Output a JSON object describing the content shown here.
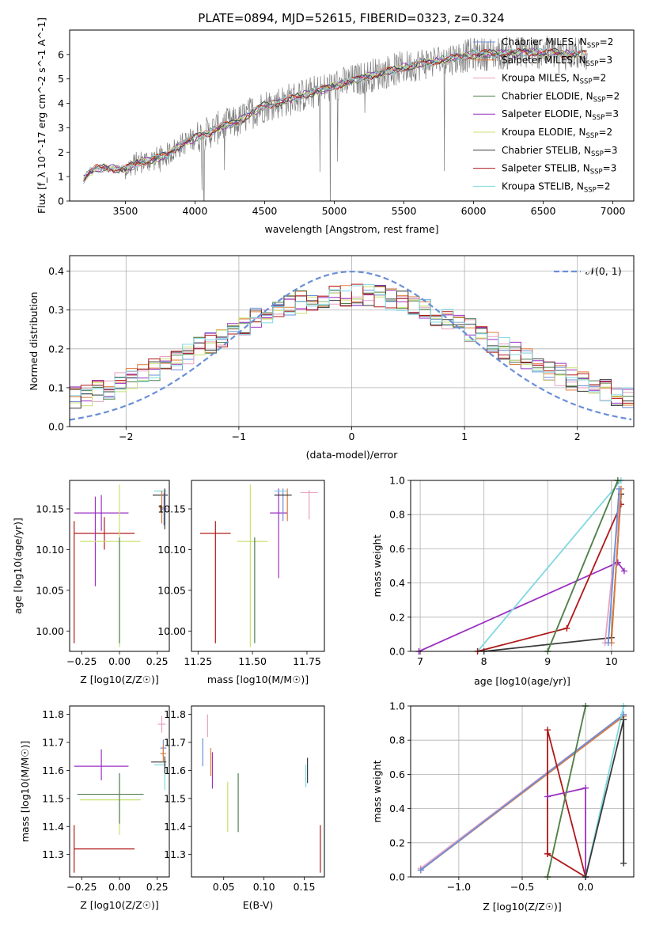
{
  "figure_title": "PLATE=0894, MJD=52615, FIBERID=0323, z=0.324",
  "colors": {
    "Chabrier MILES": "#6a8fd8",
    "Salpeter MILES": "#e07a3a",
    "Kroupa MILES": "#e8a0c0",
    "Chabrier ELODIE": "#4f7f4f",
    "Salpeter ELODIE": "#9b30c0",
    "Kroupa ELODIE": "#c8e070",
    "Chabrier STELIB": "#3a3a3a",
    "Salpeter STELIB": "#b01818",
    "Kroupa STELIB": "#80d8e0",
    "data": "#7f7f7f",
    "gaussian": "#6a8fd8"
  },
  "chart_data": [
    {
      "id": "spectrum",
      "type": "line",
      "title": "PLATE=0894, MJD=52615, FIBERID=0323, z=0.324",
      "xlabel": "wavelength [Angstrom, rest frame]",
      "ylabel": "Flux [f_λ 10^-17 erg cm^-2 s^-1 A^-1]",
      "xlim": [
        3100,
        7150
      ],
      "ylim": [
        0,
        7
      ],
      "xticks": [
        3500,
        4000,
        4500,
        5000,
        5500,
        6000,
        6500,
        7000
      ],
      "yticks": [
        0,
        1,
        2,
        3,
        4,
        5,
        6
      ],
      "legend_position": "upper right",
      "legend": [
        {
          "model": "Chabrier MILES",
          "n_ssp": "2"
        },
        {
          "model": "Salpeter MILES",
          "n_ssp": "3"
        },
        {
          "model": "Kroupa MILES",
          "n_ssp": "2"
        },
        {
          "model": "Chabrier ELODIE",
          "n_ssp": "2"
        },
        {
          "model": "Salpeter ELODIE",
          "n_ssp": "3"
        },
        {
          "model": "Kroupa ELODIE",
          "n_ssp": "2"
        },
        {
          "model": "Chabrier STELIB",
          "n_ssp": "3"
        },
        {
          "model": "Salpeter STELIB",
          "n_ssp": "3"
        },
        {
          "model": "Kroupa STELIB",
          "n_ssp": "2"
        }
      ],
      "continuum": {
        "x": [
          3200,
          3250,
          3300,
          3400,
          3500,
          3600,
          3700,
          3800,
          3900,
          4000,
          4100,
          4200,
          4300,
          4400,
          4500,
          4700,
          5000,
          5300,
          5600,
          6000,
          6400,
          6800
        ],
        "y": [
          0.9,
          1.2,
          1.35,
          1.35,
          1.3,
          1.6,
          1.7,
          1.9,
          2.3,
          2.6,
          2.8,
          3.1,
          3.2,
          3.6,
          3.9,
          4.2,
          4.7,
          5.2,
          5.6,
          6.0,
          6.1,
          6.0
        ]
      }
    },
    {
      "id": "residuals",
      "type": "line",
      "xlabel": "(data-model)/error",
      "ylabel": "Normed distribution",
      "xlim": [
        -2.5,
        2.5
      ],
      "ylim": [
        0,
        0.44
      ],
      "xticks": [
        -2,
        -1,
        0,
        1,
        2
      ],
      "yticks": [
        0.0,
        0.1,
        0.2,
        0.3,
        0.4
      ],
      "legend": [
        {
          "label": "𝒩(0, 1)"
        }
      ],
      "legend_position": "upper right",
      "grid": true
    },
    {
      "id": "age-vs-Z",
      "type": "scatter",
      "xlabel": "Z [log10(Z/Z☉)]",
      "ylabel": "age  [log10(age/yr)]",
      "xlim": [
        -0.33,
        0.33
      ],
      "ylim": [
        9.975,
        10.185
      ],
      "xticks": [
        -0.25,
        0.0,
        0.25
      ],
      "yticks": [
        10.0,
        10.05,
        10.1,
        10.15
      ],
      "points": [
        {
          "model": "Salpeter STELIB",
          "x": -0.1,
          "xerr": 0.2,
          "y": 10.12,
          "yerr": 0.02
        },
        {
          "model": "Salpeter STELIB",
          "x": -0.3,
          "xerr": 0.0,
          "y": 10.06,
          "yerr": 0.075
        },
        {
          "model": "Salpeter ELODIE",
          "x": -0.12,
          "xerr": 0.18,
          "y": 10.145,
          "yerr": 0.022
        },
        {
          "model": "Salpeter ELODIE",
          "x": -0.16,
          "xerr": 0.0,
          "y": 10.11,
          "yerr": 0.055
        },
        {
          "model": "Kroupa ELODIE",
          "x": -0.06,
          "xerr": 0.2,
          "y": 10.11,
          "yerr": 0.0
        },
        {
          "model": "Kroupa ELODIE",
          "x": 0.0,
          "xerr": 0.0,
          "y": 10.08,
          "yerr": 0.1
        },
        {
          "model": "Chabrier ELODIE",
          "x": 0.0,
          "xerr": 0.0,
          "y": 10.05,
          "yerr": 0.065
        },
        {
          "model": "Kroupa STELIB",
          "x": 0.27,
          "xerr": 0.04,
          "y": 10.172,
          "yerr": 0.0
        },
        {
          "model": "Chabrier STELIB",
          "x": 0.27,
          "xerr": 0.05,
          "y": 10.167,
          "yerr": 0.0
        },
        {
          "model": "Salpeter MILES",
          "x": 0.28,
          "xerr": 0.02,
          "y": 10.152,
          "yerr": 0.02
        },
        {
          "model": "Kroupa MILES",
          "x": 0.3,
          "xerr": 0.02,
          "y": 10.15,
          "yerr": 0.02
        },
        {
          "model": "Chabrier MILES",
          "x": 0.295,
          "xerr": 0.015,
          "y": 10.15,
          "yerr": 0.02
        },
        {
          "model": "Chabrier STELIB",
          "x": 0.3,
          "xerr": 0.0,
          "y": 10.15,
          "yerr": 0.025
        }
      ]
    },
    {
      "id": "age-vs-mass",
      "type": "scatter",
      "xlabel": "mass [log10(M/M☉)]",
      "ylabel": "",
      "xlim": [
        11.22,
        11.83
      ],
      "ylim": [
        9.975,
        10.185
      ],
      "xticks": [
        11.25,
        11.5,
        11.75
      ],
      "yticks": [
        10.0,
        10.05,
        10.1,
        10.15
      ],
      "points": [
        {
          "model": "Salpeter STELIB",
          "x": 11.33,
          "xerr": 0.07,
          "y": 10.12,
          "yerr": 0.0
        },
        {
          "model": "Salpeter STELIB",
          "x": 11.33,
          "xerr": 0.0,
          "y": 10.06,
          "yerr": 0.075
        },
        {
          "model": "Kroupa ELODIE",
          "x": 11.5,
          "xerr": 0.07,
          "y": 10.11,
          "yerr": 0.0
        },
        {
          "model": "Kroupa ELODIE",
          "x": 11.49,
          "xerr": 0.0,
          "y": 10.08,
          "yerr": 0.1
        },
        {
          "model": "Chabrier ELODIE",
          "x": 11.51,
          "xerr": 0.0,
          "y": 10.05,
          "yerr": 0.065
        },
        {
          "model": "Salpeter ELODIE",
          "x": 11.62,
          "xerr": 0.04,
          "y": 10.145,
          "yerr": 0.0
        },
        {
          "model": "Salpeter ELODIE",
          "x": 11.62,
          "xerr": 0.0,
          "y": 10.12,
          "yerr": 0.055
        },
        {
          "model": "Chabrier MILES",
          "x": 11.64,
          "xerr": 0.0,
          "y": 10.155,
          "yerr": 0.02
        },
        {
          "model": "Salpeter MILES",
          "x": 11.66,
          "xerr": 0.0,
          "y": 10.155,
          "yerr": 0.02
        },
        {
          "model": "Chabrier STELIB",
          "x": 11.64,
          "xerr": 0.04,
          "y": 10.167,
          "yerr": 0.0
        },
        {
          "model": "Kroupa STELIB",
          "x": 11.63,
          "xerr": 0.03,
          "y": 10.172,
          "yerr": 0.0
        },
        {
          "model": "Kroupa MILES",
          "x": 11.76,
          "xerr": 0.04,
          "y": 10.17,
          "yerr": 0.0
        },
        {
          "model": "Kroupa MILES",
          "x": 11.76,
          "xerr": 0.0,
          "y": 10.155,
          "yerr": 0.018
        }
      ]
    },
    {
      "id": "weight-vs-age",
      "type": "line",
      "xlabel": "age  [log10(age/yr)]",
      "ylabel": "mass weight",
      "xlim": [
        6.85,
        10.35
      ],
      "ylim": [
        0,
        1
      ],
      "xticks": [
        7,
        8,
        9,
        10
      ],
      "yticks": [
        0.0,
        0.2,
        0.4,
        0.6,
        0.8,
        1.0
      ],
      "grid": true,
      "series": [
        {
          "model": "Salpeter ELODIE",
          "x": [
            6.98,
            10.1,
            10.2
          ],
          "y": [
            0.0,
            0.52,
            0.47
          ]
        },
        {
          "model": "Kroupa STELIB",
          "x": [
            7.9,
            10.15
          ],
          "y": [
            0.0,
            1.0
          ]
        },
        {
          "model": "Salpeter STELIB",
          "x": [
            7.9,
            9.3,
            10.15
          ],
          "y": [
            0.0,
            0.135,
            0.86
          ]
        },
        {
          "model": "Chabrier STELIB",
          "x": [
            8.0,
            10.0,
            10.15
          ],
          "y": [
            0.0,
            0.08,
            0.92
          ]
        },
        {
          "model": "Kroupa ELODIE",
          "x": [
            9.0,
            10.1
          ],
          "y": [
            0.0,
            1.0
          ]
        },
        {
          "model": "Chabrier ELODIE",
          "x": [
            9.0,
            10.1
          ],
          "y": [
            0.0,
            1.0
          ]
        },
        {
          "model": "Kroupa MILES",
          "x": [
            9.9,
            10.15
          ],
          "y": [
            0.05,
            0.95
          ]
        },
        {
          "model": "Salpeter MILES",
          "x": [
            10.0,
            10.15
          ],
          "y": [
            0.05,
            0.95
          ]
        },
        {
          "model": "Chabrier MILES",
          "x": [
            9.95,
            10.12
          ],
          "y": [
            0.05,
            0.95
          ]
        }
      ]
    },
    {
      "id": "mass-vs-Z",
      "type": "scatter",
      "xlabel": "Z [log10(Z/Z☉)]",
      "ylabel": "mass [log10(M/M☉)]",
      "xlim": [
        -0.33,
        0.33
      ],
      "ylim": [
        11.22,
        11.83
      ],
      "xticks": [
        -0.25,
        0.0,
        0.25
      ],
      "yticks": [
        11.3,
        11.4,
        11.5,
        11.6,
        11.7,
        11.8
      ],
      "points": [
        {
          "model": "Salpeter STELIB",
          "x": -0.1,
          "xerr": 0.2,
          "y": 11.32,
          "yerr": 0.0
        },
        {
          "model": "Salpeter STELIB",
          "x": -0.3,
          "xerr": 0.0,
          "y": 11.32,
          "yerr": 0.085
        },
        {
          "model": "Salpeter ELODIE",
          "x": -0.12,
          "xerr": 0.18,
          "y": 11.615,
          "yerr": 0.0
        },
        {
          "model": "Salpeter ELODIE",
          "x": -0.12,
          "xerr": 0.0,
          "y": 11.62,
          "yerr": 0.055
        },
        {
          "model": "Chabrier ELODIE",
          "x": -0.06,
          "xerr": 0.22,
          "y": 11.515,
          "yerr": 0.0
        },
        {
          "model": "Kroupa ELODIE",
          "x": -0.06,
          "xerr": 0.2,
          "y": 11.495,
          "yerr": 0.0
        },
        {
          "model": "Kroupa ELODIE",
          "x": 0.0,
          "xerr": 0.0,
          "y": 11.47,
          "yerr": 0.1
        },
        {
          "model": "Chabrier ELODIE",
          "x": 0.0,
          "xerr": 0.0,
          "y": 11.5,
          "yerr": 0.09
        },
        {
          "model": "Chabrier STELIB",
          "x": 0.26,
          "xerr": 0.05,
          "y": 11.63,
          "yerr": 0.0
        },
        {
          "model": "Kroupa STELIB",
          "x": 0.27,
          "xerr": 0.04,
          "y": 11.62,
          "yerr": 0.0
        },
        {
          "model": "Kroupa MILES",
          "x": 0.28,
          "xerr": 0.025,
          "y": 11.765,
          "yerr": 0.03
        },
        {
          "model": "Chabrier MILES",
          "x": 0.29,
          "xerr": 0.02,
          "y": 11.68,
          "yerr": 0.03
        },
        {
          "model": "Salpeter MILES",
          "x": 0.29,
          "xerr": 0.02,
          "y": 11.66,
          "yerr": 0.03
        },
        {
          "model": "Kroupa STELIB",
          "x": 0.3,
          "xerr": 0.0,
          "y": 11.58,
          "yerr": 0.05
        },
        {
          "model": "Chabrier STELIB",
          "x": 0.3,
          "xerr": 0.0,
          "y": 11.62,
          "yerr": 0.03
        }
      ]
    },
    {
      "id": "mass-vs-EBV",
      "type": "scatter",
      "xlabel": "E(B-V)",
      "ylabel": "",
      "xlim": [
        0.01,
        0.175
      ],
      "ylim": [
        11.22,
        11.83
      ],
      "xticks": [
        0.05,
        0.1,
        0.15
      ],
      "yticks": [
        11.3,
        11.4,
        11.5,
        11.6,
        11.7,
        11.8
      ],
      "points": [
        {
          "model": "Kroupa MILES",
          "x": 0.03,
          "xerr": 0.0,
          "y": 11.76,
          "yerr": 0.04
        },
        {
          "model": "Chabrier MILES",
          "x": 0.024,
          "xerr": 0.0,
          "y": 11.665,
          "yerr": 0.05
        },
        {
          "model": "Salpeter MILES",
          "x": 0.034,
          "xerr": 0.0,
          "y": 11.63,
          "yerr": 0.05
        },
        {
          "model": "Salpeter ELODIE",
          "x": 0.036,
          "xerr": 0.0,
          "y": 11.6,
          "yerr": 0.065
        },
        {
          "model": "Kroupa ELODIE",
          "x": 0.055,
          "xerr": 0.0,
          "y": 11.47,
          "yerr": 0.09
        },
        {
          "model": "Chabrier ELODIE",
          "x": 0.068,
          "xerr": 0.0,
          "y": 11.485,
          "yerr": 0.105
        },
        {
          "model": "Kroupa STELIB",
          "x": 0.152,
          "xerr": 0.0,
          "y": 11.58,
          "yerr": 0.04
        },
        {
          "model": "Chabrier STELIB",
          "x": 0.154,
          "xerr": 0.0,
          "y": 11.6,
          "yerr": 0.045
        },
        {
          "model": "Salpeter STELIB",
          "x": 0.17,
          "xerr": 0.0,
          "y": 11.32,
          "yerr": 0.085
        }
      ]
    },
    {
      "id": "weight-vs-Z",
      "type": "line",
      "xlabel": "Z [log10(Z/Z☉)]",
      "ylabel": "mass weight",
      "xlim": [
        -1.38,
        0.38
      ],
      "ylim": [
        0,
        1
      ],
      "xticks": [
        -1.0,
        -0.5,
        0.0
      ],
      "yticks": [
        0.0,
        0.2,
        0.4,
        0.6,
        0.8,
        1.0
      ],
      "grid": true,
      "series": [
        {
          "model": "Kroupa MILES",
          "x": [
            -1.3,
            0.3
          ],
          "y": [
            0.05,
            0.95
          ]
        },
        {
          "model": "Salpeter MILES",
          "x": [
            -1.3,
            0.3
          ],
          "y": [
            0.04,
            0.94
          ]
        },
        {
          "model": "Chabrier MILES",
          "x": [
            -1.3,
            0.3
          ],
          "y": [
            0.04,
            0.95
          ]
        },
        {
          "model": "Salpeter STELIB",
          "x": [
            -0.3,
            -0.3,
            0.0,
            -0.3
          ],
          "y": [
            0.135,
            0.86,
            0.0,
            0.135
          ]
        },
        {
          "model": "Salpeter ELODIE",
          "x": [
            -0.3,
            0.0,
            0.0
          ],
          "y": [
            0.47,
            0.52,
            0.0
          ]
        },
        {
          "model": "Kroupa ELODIE",
          "x": [
            -0.3,
            0.0
          ],
          "y": [
            0.0,
            1.0
          ]
        },
        {
          "model": "Chabrier ELODIE",
          "x": [
            -0.3,
            0.0
          ],
          "y": [
            0.0,
            1.0
          ]
        },
        {
          "model": "Kroupa STELIB",
          "x": [
            0.0,
            0.3
          ],
          "y": [
            0.0,
            1.0
          ]
        },
        {
          "model": "Chabrier STELIB",
          "x": [
            0.0,
            0.3,
            0.3
          ],
          "y": [
            0.0,
            0.92,
            0.08
          ]
        }
      ]
    }
  ]
}
